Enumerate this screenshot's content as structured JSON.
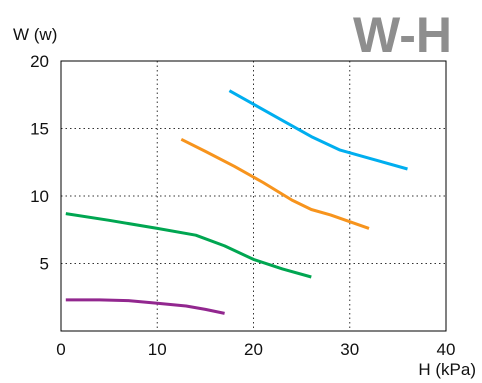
{
  "chart_data": {
    "type": "line",
    "title": "W-H",
    "ylabel": "W (w)",
    "xlabel": "H (kPa)",
    "xlim": [
      0,
      40
    ],
    "ylim": [
      0,
      20
    ],
    "xticks": [
      "0",
      "10",
      "20",
      "30",
      "40"
    ],
    "yticks": [
      "5",
      "10",
      "15",
      "20"
    ],
    "grid": "dotted",
    "series": [
      {
        "color": "#00aeef",
        "x": [
          17.5,
          20,
          23,
          26,
          29,
          32,
          36
        ],
        "y": [
          17.8,
          16.8,
          15.6,
          14.4,
          13.4,
          12.8,
          12.0
        ]
      },
      {
        "color": "#f7941d",
        "x": [
          12.5,
          15,
          18,
          21,
          24,
          26,
          28,
          32
        ],
        "y": [
          14.2,
          13.3,
          12.2,
          11.0,
          9.7,
          9.0,
          8.6,
          7.6
        ]
      },
      {
        "color": "#00a651",
        "x": [
          0.5,
          5,
          10,
          14,
          17,
          20,
          23,
          26
        ],
        "y": [
          8.7,
          8.2,
          7.6,
          7.1,
          6.3,
          5.3,
          4.6,
          4.0
        ]
      },
      {
        "color": "#92278f",
        "x": [
          0.5,
          4,
          7,
          10,
          13,
          15,
          17
        ],
        "y": [
          2.3,
          2.3,
          2.25,
          2.05,
          1.85,
          1.6,
          1.3
        ]
      }
    ]
  }
}
